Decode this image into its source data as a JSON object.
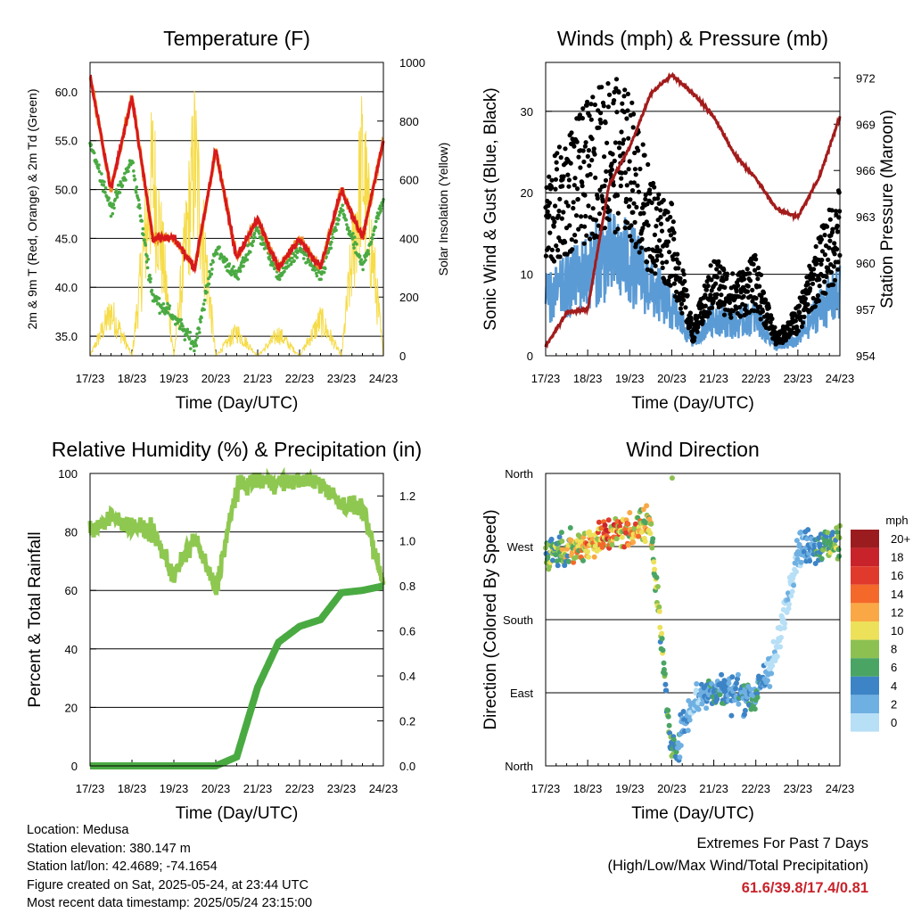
{
  "page": {
    "background": "#ffffff"
  },
  "x_ticks": [
    "17/23",
    "18/23",
    "19/23",
    "20/23",
    "21/23",
    "22/23",
    "23/23",
    "24/23"
  ],
  "xlabel": "Time (Day/UTC)",
  "colors": {
    "temp_2m": "#d7191c",
    "temp_9m": "#f08a24",
    "dewpoint": "#4aaa42",
    "insolation": "#f6dc4a",
    "gust": "#000000",
    "wind": "#5b9bd5",
    "pressure": "#a31c1c",
    "rh": "#8fc851",
    "precip": "#4aaa42",
    "extremes": "#c8232b"
  },
  "chart_data": [
    {
      "type": "line",
      "id": "temperature",
      "title": "Temperature (F)",
      "xlabel": "Time (Day/UTC)",
      "ylabel": "2m & 9m T (Red, Orange) & 2m Td (Green)",
      "y2label": "Solar Insolation (Yellow)",
      "ylim": [
        33,
        63
      ],
      "y2lim": [
        0,
        1000
      ],
      "yticks": [
        "35.0",
        "40.0",
        "45.0",
        "50.0",
        "55.0",
        "60.0"
      ],
      "y2ticks": [
        "0",
        "200",
        "400",
        "600",
        "800",
        "1000"
      ],
      "x": [
        17,
        17.5,
        18,
        18.5,
        19,
        19.5,
        20,
        20.5,
        21,
        21.5,
        22,
        22.5,
        23,
        23.5,
        24
      ],
      "series": [
        {
          "values": [
            61.6,
            50,
            59.5,
            45,
            45,
            42,
            54,
            43,
            47,
            42,
            45,
            42,
            50,
            45,
            55
          ]
        },
        {
          "values": [
            61.6,
            50,
            59.5,
            45,
            45,
            42,
            54,
            43,
            47,
            42,
            45,
            42,
            50,
            45,
            55
          ]
        },
        {
          "values": [
            55,
            48,
            53,
            39,
            37,
            34,
            44,
            41,
            46,
            41,
            44,
            41,
            48,
            42,
            49
          ]
        },
        {
          "values": [
            0,
            220,
            0,
            920,
            0,
            980,
            0,
            120,
            0,
            110,
            0,
            180,
            0,
            960,
            0
          ]
        }
      ]
    },
    {
      "type": "scatter",
      "id": "winds",
      "title": "Winds (mph) & Pressure (mb)",
      "xlabel": "Time (Day/UTC)",
      "ylabel": "Sonic Wind & Gust (Blue, Black)",
      "y2label": "Station Pressure (Maroon)",
      "ylim": [
        0,
        36
      ],
      "y2lim": [
        954,
        973
      ],
      "yticks": [
        "0",
        "10",
        "20",
        "30"
      ],
      "y2ticks": [
        "954",
        "957",
        "960",
        "963",
        "966",
        "969",
        "972"
      ],
      "x": [
        17,
        17.5,
        18,
        18.5,
        19,
        19.5,
        20,
        20.5,
        21,
        21.5,
        22,
        22.5,
        23,
        23.5,
        24
      ],
      "series": [
        {
          "values": [
            18,
            22,
            25,
            28,
            26,
            18,
            15,
            3,
            10,
            8,
            10,
            2,
            5,
            12,
            17
          ]
        },
        {
          "values": [
            7,
            9,
            11,
            13,
            12,
            9,
            6,
            2,
            5,
            4,
            5,
            1,
            2,
            6,
            8
          ]
        },
        {
          "values": [
            954.6,
            956.8,
            957,
            965,
            967.5,
            971,
            972.2,
            971,
            969.5,
            967,
            965.5,
            963.5,
            963,
            965.5,
            969.5
          ]
        }
      ]
    },
    {
      "type": "line",
      "id": "humidity",
      "title": "Relative Humidity (%) & Precipitation (in)",
      "xlabel": "Time (Day/UTC)",
      "ylabel": "Percent & Total Rainfall",
      "ylim": [
        0,
        100
      ],
      "y2lim": [
        0,
        1.3
      ],
      "yticks": [
        "0",
        "20",
        "40",
        "60",
        "80",
        "100"
      ],
      "y2ticks": [
        "0.0",
        "0.2",
        "0.4",
        "0.6",
        "0.8",
        "1.0",
        "1.2"
      ],
      "x": [
        17,
        17.5,
        18,
        18.5,
        19,
        19.5,
        20,
        20.5,
        21,
        21.5,
        22,
        22.5,
        23,
        23.5,
        24
      ],
      "series": [
        {
          "values": [
            80,
            85,
            82,
            80,
            65,
            78,
            60,
            95,
            98,
            97,
            98,
            97,
            90,
            88,
            62
          ]
        },
        {
          "values": [
            0,
            0,
            0,
            0,
            0,
            0,
            0,
            0.04,
            0.35,
            0.55,
            0.62,
            0.65,
            0.77,
            0.78,
            0.8
          ]
        }
      ]
    },
    {
      "type": "scatter",
      "id": "direction",
      "title": "Wind Direction",
      "xlabel": "Time (Day/UTC)",
      "ylabel": "Direction (Colored By Speed)",
      "ylim": [
        0,
        360
      ],
      "yticks": [
        "North",
        "East",
        "South",
        "West",
        "North"
      ],
      "legend": {
        "title": "mph",
        "labels": [
          "20+",
          "18",
          "16",
          "14",
          "12",
          "10",
          "8",
          "6",
          "4",
          "2",
          "0"
        ],
        "colors": [
          "#9b1c1f",
          "#c8232b",
          "#e03a2c",
          "#f4682a",
          "#f9a845",
          "#ede15a",
          "#8cc152",
          "#4aa564",
          "#3d84c6",
          "#6fb0e2",
          "#b7dff6"
        ]
      },
      "x": [
        17,
        17.5,
        18,
        18.5,
        19,
        19.5,
        20,
        20.5,
        21,
        21.5,
        22,
        22.5,
        23,
        23.5,
        24
      ],
      "series": [
        {
          "values": [
            265,
            265,
            275,
            285,
            290,
            300,
            10,
            80,
            95,
            90,
            85,
            140,
            270,
            270,
            275
          ]
        }
      ]
    }
  ],
  "info": {
    "location": "Location: Medusa",
    "elevation": "Station elevation: 380.147 m",
    "latlon": "Station lat/lon: 42.4689; -74.1654",
    "created": "Figure created on Sat, 2025-05-24, at 23:44 UTC",
    "recent": "Most recent data timestamp: 2025/05/24 23:15:00"
  },
  "extremes": {
    "title": "Extremes For Past 7 Days",
    "subtitle": "(High/Low/Max Wind/Total Precipitation)",
    "values": "61.6/39.8/17.4/0.81"
  }
}
